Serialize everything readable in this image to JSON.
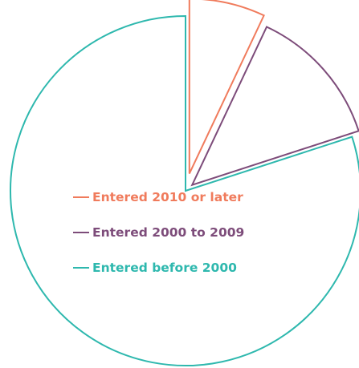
{
  "chart_data": {
    "type": "pie",
    "title": "",
    "series": [
      {
        "name": "Entered 2010 or later",
        "value": 7,
        "color": "#F07B5C"
      },
      {
        "name": "Entered 2000 to 2009",
        "value": 13,
        "color": "#7D4C7A"
      },
      {
        "name": "Entered before 2000",
        "value": 80,
        "color": "#2EB8AE"
      }
    ],
    "legend_position": "center"
  }
}
